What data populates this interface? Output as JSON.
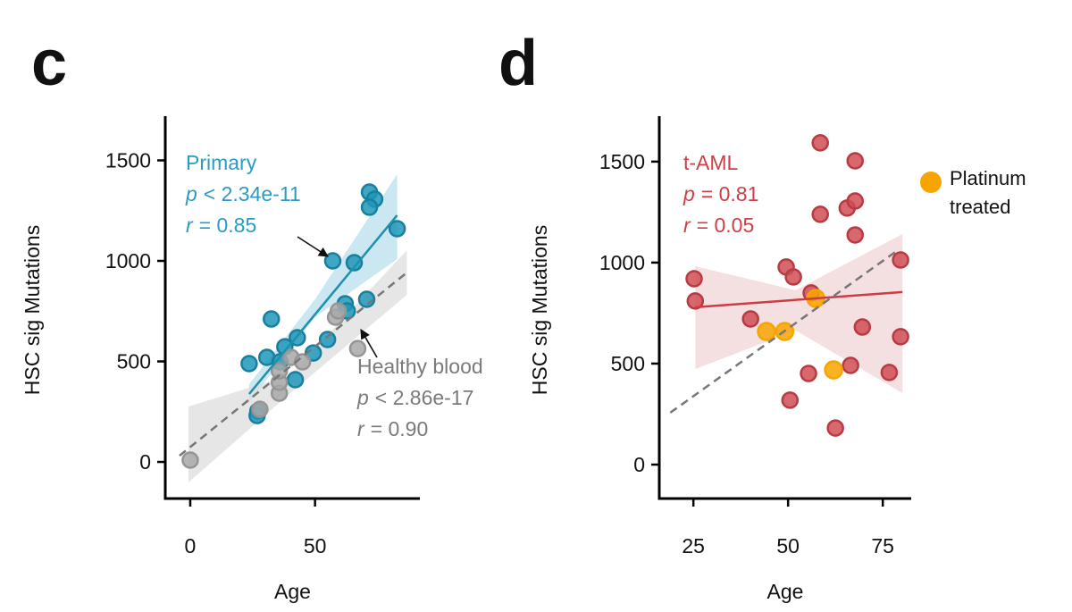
{
  "chart_data": [
    {
      "type": "scatter",
      "panel_label": "c",
      "xlabel": "Age",
      "ylabel": "HSC sig Mutations",
      "xlim": [
        -10,
        92
      ],
      "ylim": [
        -182,
        1720
      ],
      "xticks": [
        0,
        50
      ],
      "yticks": [
        0,
        500,
        1000,
        1500
      ],
      "series": [
        {
          "name": "Primary",
          "color": "#1f96b8",
          "x": [
            23.6,
            27.1,
            26.8,
            30.7,
            32.5,
            36,
            37.9,
            42.9,
            42.1,
            49.3,
            55,
            57.1,
            62.1,
            62.9,
            65.7,
            70.7,
            71.8,
            73.9,
            71.8,
            82.9
          ],
          "values": [
            489,
            253,
            231,
            520,
            711,
            498,
            573,
            618,
            409,
            542,
            609,
            1000,
            787,
            751,
            991,
            809,
            1342,
            1307,
            1267,
            1160
          ]
        },
        {
          "name": "Healthy blood",
          "color": "#a8a8a8",
          "x": [
            0,
            27.9,
            35.7,
            35.7,
            35.7,
            40.4,
            45,
            58.2,
            59.3,
            67.1
          ],
          "values": [
            9,
            262,
            342,
            396,
            453,
            520,
            498,
            720,
            751,
            564
          ]
        }
      ],
      "fits": [
        {
          "color": "#1f8fae",
          "dashed": false,
          "x": [
            23.6,
            82.9
          ],
          "values": [
            338,
            1227
          ]
        },
        {
          "color": "#777777",
          "dashed": true,
          "x": [
            -4.3,
            86.8
          ],
          "values": [
            31,
            942
          ]
        }
      ],
      "bands": [
        {
          "color": "#b9dfee",
          "x": [
            23.6,
            50,
            82.9
          ],
          "lower": [
            298,
            720,
            1009
          ],
          "upper": [
            387,
            809,
            1431
          ]
        },
        {
          "color": "#dedede",
          "x": [
            -0.7,
            40,
            86.8
          ],
          "lower": [
            -102,
            342,
            831
          ],
          "upper": [
            276,
            431,
            1053
          ]
        }
      ],
      "annotations": [
        {
          "color": "#2a9cc0",
          "title": "Primary",
          "p_symbol": "p",
          "p_text": "< 2.34e-11",
          "r_symbol": "r",
          "r_text": "= 0.85"
        },
        {
          "color": "#7a7a7a",
          "title": "Healthy blood",
          "p_symbol": "p",
          "p_text": "< 2.86e-17",
          "r_symbol": "r",
          "r_text": "= 0.90"
        }
      ]
    },
    {
      "type": "scatter",
      "panel_label": "d",
      "xlabel": "Age",
      "ylabel": "HSC sig Mutations",
      "xlim": [
        16,
        82.5
      ],
      "ylim": [
        -168,
        1725
      ],
      "xticks": [
        25,
        50,
        75
      ],
      "yticks": [
        0,
        500,
        1000,
        1500
      ],
      "series": [
        {
          "name": "t-AML",
          "color": "#cf4d55",
          "legend": false,
          "x": [
            25.2,
            25.5,
            40.1,
            49.5,
            51.4,
            56.1,
            58.5,
            58.5,
            55.4,
            50.5,
            65.6,
            67.7,
            67.7,
            67.7,
            69.6,
            66.5,
            62.5,
            76.7,
            79.7,
            79.7
          ],
          "values": [
            920,
            810,
            721,
            978,
            929,
            850,
            1593,
            1239,
            451,
            319,
            1270,
            1305,
            1504,
            1137,
            681,
            491,
            181,
            456,
            1013,
            633
          ]
        },
        {
          "name": "Platinum treated",
          "color": "#f7a400",
          "legend": true,
          "x": [
            44.3,
            49.1,
            57.3,
            62
          ],
          "values": [
            659,
            659,
            823,
            469
          ]
        }
      ],
      "fits": [
        {
          "color": "#cc3d43",
          "dashed": false,
          "x": [
            25.5,
            80.2
          ],
          "values": [
            779,
            854
          ]
        },
        {
          "color": "#777777",
          "dashed": true,
          "x": [
            18.9,
            79
          ],
          "values": [
            257,
            1062
          ]
        }
      ],
      "bands": [
        {
          "color": "#f2d6d7",
          "x": [
            25.5,
            52,
            80.2
          ],
          "lower": [
            473,
            664,
            354
          ],
          "upper": [
            982,
            863,
            1142
          ]
        }
      ],
      "annotations": [
        {
          "color": "#cf3f47",
          "title": "t-AML",
          "p_symbol": "p",
          "p_text": "= 0.81",
          "r_symbol": "r",
          "r_text": "= 0.05"
        }
      ]
    }
  ]
}
